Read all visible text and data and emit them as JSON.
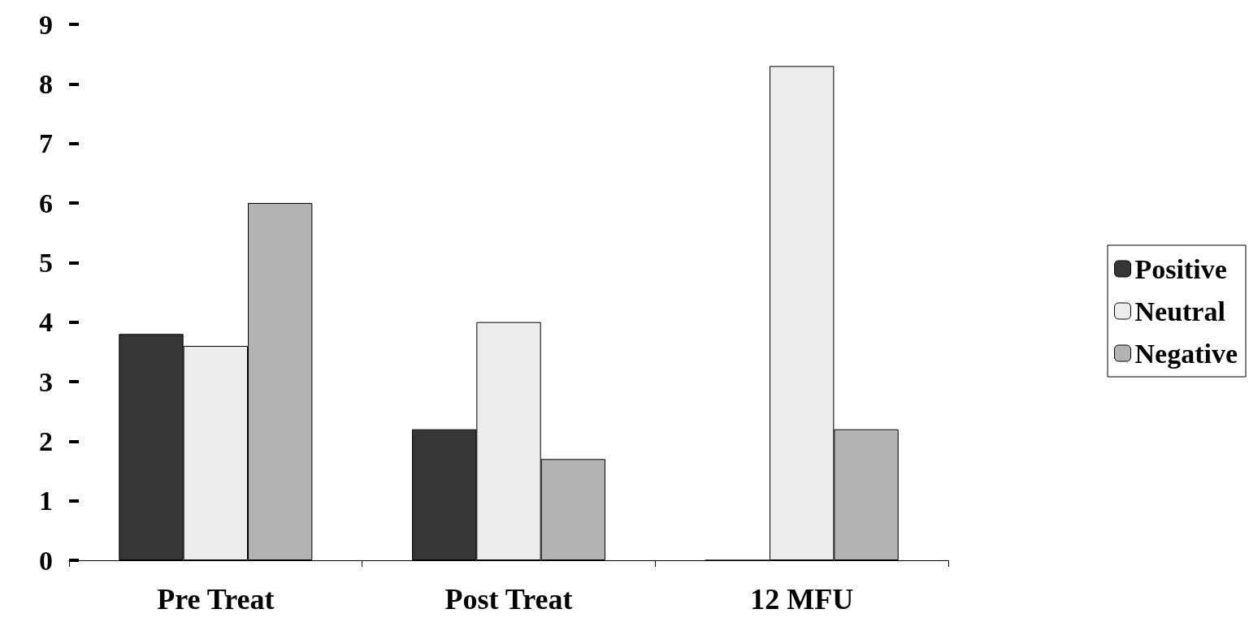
{
  "chart_data": {
    "type": "bar",
    "categories": [
      "Pre Treat",
      "Post Treat",
      "12 MFU"
    ],
    "series": [
      {
        "name": "Positive",
        "color": "#363636",
        "values": [
          3.8,
          2.2,
          0
        ]
      },
      {
        "name": "Neutral",
        "color": "#ececec",
        "values": [
          3.6,
          4,
          8.3
        ]
      },
      {
        "name": "Negative",
        "color": "#b3b3b3",
        "values": [
          6,
          1.7,
          2.2
        ]
      }
    ],
    "ylim": [
      0,
      9
    ],
    "yticks": [
      0,
      1,
      2,
      3,
      4,
      5,
      6,
      7,
      8,
      9
    ],
    "grid": false,
    "legend": "right"
  }
}
